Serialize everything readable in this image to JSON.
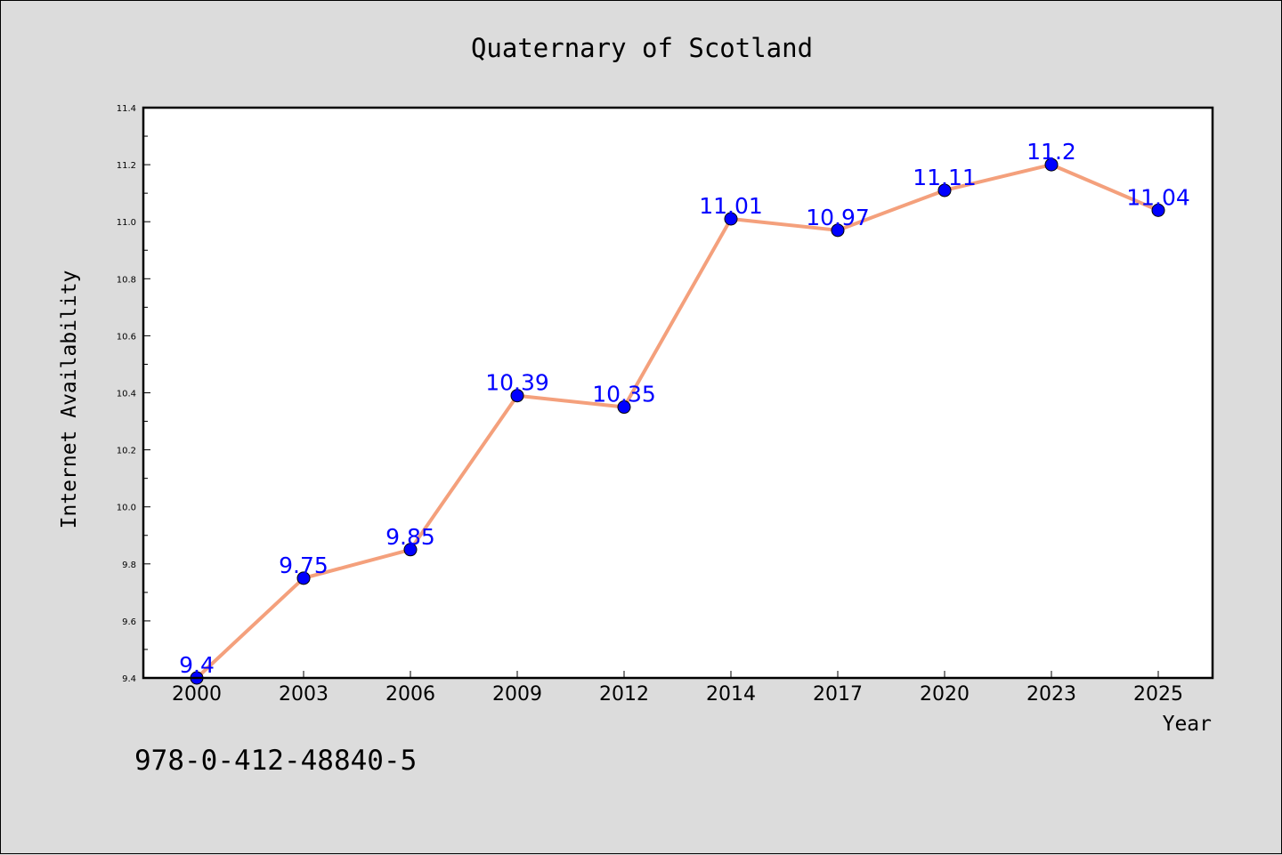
{
  "chart_data": {
    "type": "line",
    "title": "Quaternary of Scotland",
    "xlabel": "Year",
    "ylabel": "Internet Availability",
    "categories": [
      "2000",
      "2003",
      "2006",
      "2009",
      "2012",
      "2014",
      "2017",
      "2020",
      "2023",
      "2025"
    ],
    "series": [
      {
        "values": [
          9.4,
          9.75,
          9.85,
          10.39,
          10.35,
          11.01,
          10.97,
          11.11,
          11.2,
          11.04
        ],
        "labels": [
          "9.4",
          "9.75",
          "9.85",
          "10.39",
          "10.35",
          "11.01",
          "10.97",
          "11.11",
          "11.2",
          "11.04"
        ],
        "line_color": "#f4a07c",
        "marker_color": "#0000ff"
      }
    ],
    "ylim": [
      9.4,
      11.4
    ],
    "yticks": [
      "9.4",
      "9.6",
      "9.8",
      "10.0",
      "10.2",
      "10.4",
      "10.6",
      "10.8",
      "11.0",
      "11.2",
      "11.4"
    ],
    "grid": false,
    "legend": "none"
  },
  "footer_text": "978-0-412-48840-5",
  "colors": {
    "background": "#dcdcdc",
    "plot_background": "#ffffff"
  }
}
